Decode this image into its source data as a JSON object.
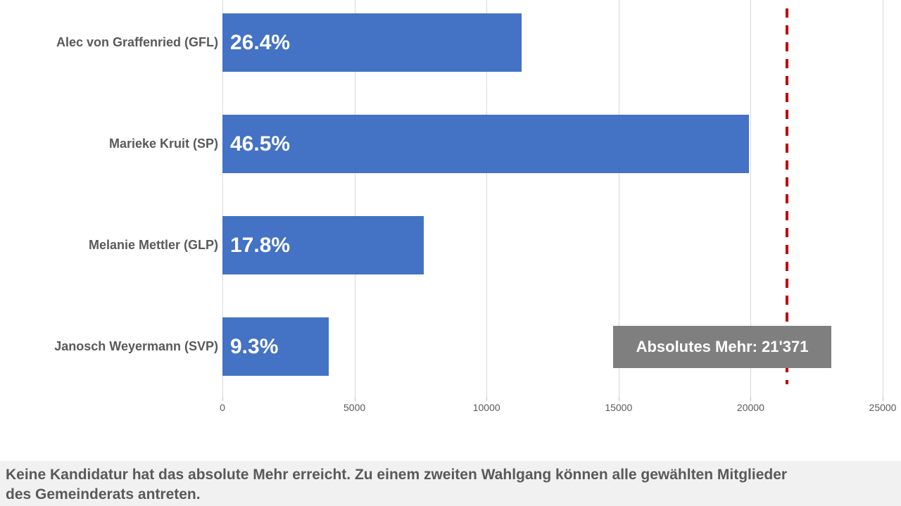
{
  "chart_data": {
    "type": "bar",
    "orientation": "horizontal",
    "title": "",
    "categories": [
      "Alec von Graffenried (GFL)",
      "Marieke Kruit (SP)",
      "Melanie Mettler (GLP)",
      "Janosch Weyermann (SVP)"
    ],
    "values": [
      11320,
      19945,
      7620,
      4015
    ],
    "percent_labels": [
      "26.4%",
      "46.5%",
      "17.8%",
      "9.3%"
    ],
    "xlabel": "",
    "ylabel": "",
    "xlim": [
      0,
      25000
    ],
    "x_ticks": [
      0,
      5000,
      10000,
      15000,
      20000,
      25000
    ],
    "x_tick_labels": [
      "0",
      "5000",
      "10000",
      "15000",
      "20000",
      "25000"
    ],
    "grid": true,
    "legend": "none",
    "bar_color": "#4472c4",
    "threshold": {
      "value": 21371,
      "label": "Absolutes Mehr: 21'371",
      "line_color": "#c00000",
      "box_color": "#7f7f7f"
    }
  },
  "footer": {
    "lines": [
      "Keine Kandidatur hat das absolute Mehr erreicht. Zu einem zweiten Wahlgang können alle gewählten Mitglieder",
      "des Gemeinderats antreten."
    ],
    "background": "#f1f1f1",
    "text_color": "#595959"
  }
}
